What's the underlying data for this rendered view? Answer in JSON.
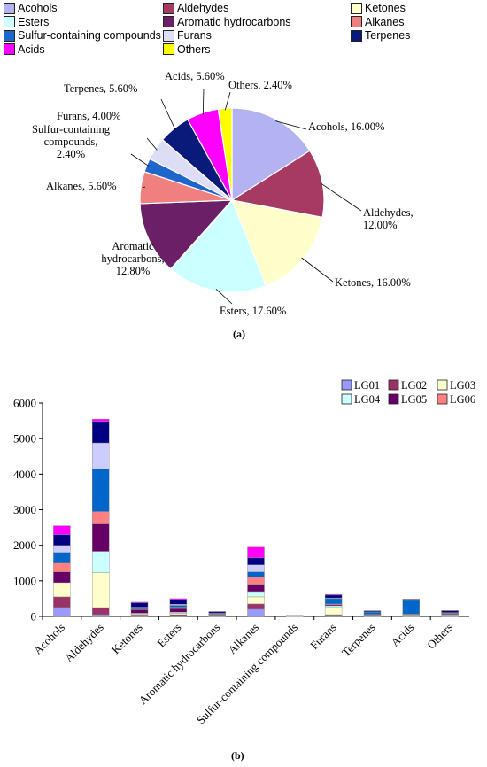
{
  "chart_data": [
    {
      "type": "pie",
      "panel_label": "(a)",
      "legend_position": "top",
      "slices": [
        {
          "label": "Acohols",
          "value": 16.0,
          "color": "#B3B3F2",
          "data_label": "Acohols, 16.00%"
        },
        {
          "label": "Aldehydes",
          "value": 12.0,
          "color": "#A63A63",
          "data_label": "Aldehydes,\n12.00%"
        },
        {
          "label": "Ketones",
          "value": 16.0,
          "color": "#FFFFCC",
          "data_label": "Ketones, 16.00%"
        },
        {
          "label": "Esters",
          "value": 17.6,
          "color": "#CCFFFF",
          "data_label": "Esters, 17.60%"
        },
        {
          "label": "Aromatic hydrocarbons",
          "value": 12.8,
          "color": "#6B1F66",
          "data_label": "Aromatic\nhydrocarbons,\n12.80%"
        },
        {
          "label": "Alkanes",
          "value": 5.6,
          "color": "#F08080",
          "data_label": "Alkanes, 5.60%"
        },
        {
          "label": "Sulfur-containing compounds",
          "value": 2.4,
          "color": "#1F66CC",
          "data_label": "Sulfur-containing\ncompounds,\n2.40%"
        },
        {
          "label": "Furans",
          "value": 4.0,
          "color": "#DDDDF5",
          "data_label": "Furans, 4.00%"
        },
        {
          "label": "Terpenes",
          "value": 5.6,
          "color": "#0A1A7A",
          "data_label": "Terpenes, 5.60%"
        },
        {
          "label": "Acids",
          "value": 5.6,
          "color": "#FF00FF",
          "data_label": "Acids, 5.60%"
        },
        {
          "label": "Others",
          "value": 2.4,
          "color": "#FFFF00",
          "data_label": "Others, 2.40%"
        }
      ]
    },
    {
      "type": "bar",
      "stacked": true,
      "panel_label": "(b)",
      "legend_position": "top-right",
      "categories": [
        "Acohols",
        "Aldehydes",
        "Ketones",
        "Esters",
        "Aromatic hydrocarbons",
        "Alkanes",
        "Sulfur-containing compounds",
        "Furans",
        "Terpenes",
        "Acids",
        "Others"
      ],
      "ylim": [
        0,
        6000
      ],
      "yticks": [
        0,
        1000,
        2000,
        3000,
        4000,
        5000,
        6000
      ],
      "grid": false,
      "series": [
        {
          "name": "LG01",
          "color": "#9999FF",
          "values": [
            250,
            50,
            20,
            20,
            10,
            200,
            5,
            30,
            10,
            10,
            10
          ]
        },
        {
          "name": "LG02",
          "color": "#993366",
          "values": [
            300,
            200,
            20,
            30,
            10,
            150,
            5,
            20,
            10,
            10,
            10
          ]
        },
        {
          "name": "LG03",
          "color": "#FFFFCC",
          "values": [
            400,
            980,
            30,
            40,
            10,
            200,
            5,
            200,
            10,
            20,
            20
          ]
        },
        {
          "name": "LG04",
          "color": "#CCFFFF",
          "values": [
            0,
            600,
            20,
            30,
            10,
            150,
            0,
            50,
            10,
            10,
            10
          ]
        },
        {
          "name": "LG05",
          "color": "#660066",
          "values": [
            300,
            770,
            100,
            100,
            20,
            200,
            5,
            30,
            10,
            10,
            20
          ]
        },
        {
          "name": "LG06",
          "color": "#FF8080",
          "values": [
            250,
            350,
            20,
            40,
            10,
            200,
            0,
            20,
            10,
            10,
            10
          ]
        },
        {
          "name": "",
          "color": "#0066CC",
          "values": [
            300,
            1200,
            30,
            50,
            10,
            150,
            5,
            150,
            60,
            380,
            20
          ]
        },
        {
          "name": "",
          "color": "#CCCCFF",
          "values": [
            200,
            730,
            20,
            30,
            10,
            200,
            0,
            20,
            10,
            10,
            10
          ]
        },
        {
          "name": "",
          "color": "#000080",
          "values": [
            300,
            600,
            120,
            130,
            40,
            200,
            5,
            80,
            30,
            20,
            50
          ]
        },
        {
          "name": "",
          "color": "#FF00FF",
          "values": [
            250,
            70,
            20,
            30,
            10,
            300,
            0,
            20,
            0,
            10,
            10
          ]
        }
      ]
    }
  ]
}
